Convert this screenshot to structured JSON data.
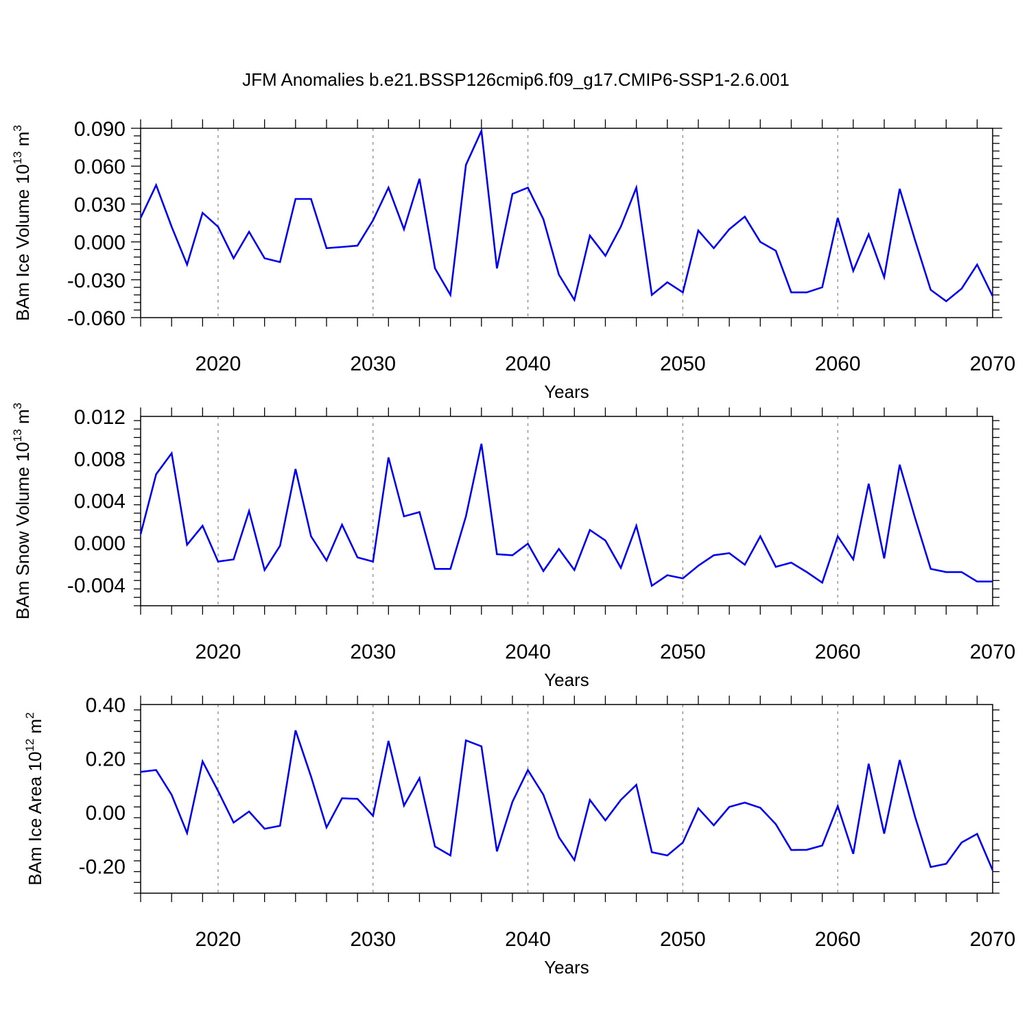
{
  "title": "JFM Anomalies b.e21.BSSP126cmip6.f09_g17.CMIP6-SSP1-2.6.001",
  "chart_data": [
    {
      "type": "line",
      "title": "",
      "xlabel": "Years",
      "ylabel": {
        "prefix": "BAm Ice Volume 10",
        "exp": "13",
        "unit": " m",
        "unit_exp": "3"
      },
      "xlim": [
        2015,
        2070
      ],
      "ylim": [
        -0.06,
        0.09
      ],
      "x_ticks": [
        2020,
        2030,
        2040,
        2050,
        2060,
        2070
      ],
      "y_ticks": [
        -0.06,
        -0.03,
        0.0,
        0.03,
        0.06,
        0.09
      ],
      "y_tick_labels": [
        "-0.060",
        "-0.030",
        "0.000",
        "0.030",
        "0.060",
        "0.090"
      ],
      "grid": "vertical dashed at major x ticks",
      "series_color": "#0000ee",
      "x": [
        2015,
        2016,
        2017,
        2018,
        2019,
        2020,
        2021,
        2022,
        2023,
        2024,
        2025,
        2026,
        2027,
        2028,
        2029,
        2030,
        2031,
        2032,
        2033,
        2034,
        2035,
        2036,
        2037,
        2038,
        2039,
        2040,
        2041,
        2042,
        2043,
        2044,
        2045,
        2046,
        2047,
        2048,
        2049,
        2050,
        2051,
        2052,
        2053,
        2054,
        2055,
        2056,
        2057,
        2058,
        2059,
        2060,
        2061,
        2062,
        2063,
        2064,
        2065,
        2066,
        2067,
        2068,
        2069,
        2070
      ],
      "values": [
        0.019,
        0.045,
        0.012,
        -0.018,
        0.023,
        0.012,
        -0.013,
        0.008,
        -0.013,
        -0.016,
        0.034,
        0.034,
        -0.005,
        -0.004,
        -0.003,
        0.017,
        0.043,
        0.01,
        0.05,
        -0.021,
        -0.042,
        0.061,
        0.088,
        -0.021,
        0.038,
        0.043,
        0.018,
        -0.026,
        -0.046,
        0.005,
        -0.011,
        0.012,
        0.043,
        -0.042,
        -0.032,
        -0.04,
        0.009,
        -0.005,
        0.01,
        0.02,
        0.0,
        -0.007,
        -0.04,
        -0.04,
        -0.036,
        0.019,
        -0.023,
        0.006,
        -0.028,
        0.042,
        0.001,
        -0.038,
        -0.047,
        -0.037,
        -0.018,
        -0.043
      ]
    },
    {
      "type": "line",
      "title": "",
      "xlabel": "Years",
      "ylabel": {
        "prefix": "BAm Snow Volume 10",
        "exp": "13",
        "unit": " m",
        "unit_exp": "3"
      },
      "xlim": [
        2015,
        2070
      ],
      "ylim": [
        -0.006,
        0.012
      ],
      "x_ticks": [
        2020,
        2030,
        2040,
        2050,
        2060,
        2070
      ],
      "y_ticks": [
        -0.004,
        0.0,
        0.004,
        0.008,
        0.012
      ],
      "y_tick_labels": [
        "-0.004",
        "0.000",
        "0.004",
        "0.008",
        "0.012"
      ],
      "grid": "vertical dashed at major x ticks",
      "series_color": "#0000ee",
      "x": [
        2015,
        2016,
        2017,
        2018,
        2019,
        2020,
        2021,
        2022,
        2023,
        2024,
        2025,
        2026,
        2027,
        2028,
        2029,
        2030,
        2031,
        2032,
        2033,
        2034,
        2035,
        2036,
        2037,
        2038,
        2039,
        2040,
        2041,
        2042,
        2043,
        2044,
        2045,
        2046,
        2047,
        2048,
        2049,
        2050,
        2051,
        2052,
        2053,
        2054,
        2055,
        2056,
        2057,
        2058,
        2059,
        2060,
        2061,
        2062,
        2063,
        2064,
        2065,
        2066,
        2067,
        2068,
        2069,
        2070
      ],
      "values": [
        0.0008,
        0.0065,
        0.0085,
        -0.0002,
        0.0016,
        -0.0018,
        -0.0016,
        0.003,
        -0.0026,
        -0.0003,
        0.007,
        0.0006,
        -0.0017,
        0.0017,
        -0.0014,
        -0.0018,
        0.0081,
        0.0025,
        0.0029,
        -0.0025,
        -0.0025,
        0.0025,
        0.0094,
        -0.0011,
        -0.0012,
        -0.0001,
        -0.0027,
        -0.0006,
        -0.0026,
        0.0012,
        0.0002,
        -0.0024,
        0.0016,
        -0.0041,
        -0.0031,
        -0.0034,
        -0.0022,
        -0.0012,
        -0.001,
        -0.0021,
        0.0006,
        -0.0023,
        -0.0019,
        -0.0028,
        -0.0038,
        0.0006,
        -0.0016,
        0.0056,
        -0.0015,
        0.0074,
        0.0023,
        -0.0025,
        -0.0028,
        -0.0028,
        -0.0037,
        -0.0037
      ]
    },
    {
      "type": "line",
      "title": "",
      "xlabel": "Years",
      "ylabel": {
        "prefix": "BAm Ice Area 10",
        "exp": "12",
        "unit": " m",
        "unit_exp": "2"
      },
      "xlim": [
        2015,
        2070
      ],
      "ylim": [
        -0.3,
        0.4
      ],
      "x_ticks": [
        2020,
        2030,
        2040,
        2050,
        2060,
        2070
      ],
      "y_ticks": [
        -0.2,
        0.0,
        0.2,
        0.4
      ],
      "y_tick_labels": [
        "-0.20",
        "0.00",
        "0.20",
        "0.40"
      ],
      "grid": "vertical dashed at major x ticks",
      "series_color": "#0000ee",
      "x": [
        2015,
        2016,
        2017,
        2018,
        2019,
        2020,
        2021,
        2022,
        2023,
        2024,
        2025,
        2026,
        2027,
        2028,
        2029,
        2030,
        2031,
        2032,
        2033,
        2034,
        2035,
        2036,
        2037,
        2038,
        2039,
        2040,
        2041,
        2042,
        2043,
        2044,
        2045,
        2046,
        2047,
        2048,
        2049,
        2050,
        2051,
        2052,
        2053,
        2054,
        2055,
        2056,
        2057,
        2058,
        2059,
        2060,
        2061,
        2062,
        2063,
        2064,
        2065,
        2066,
        2067,
        2068,
        2069,
        2070
      ],
      "values": [
        0.15,
        0.157,
        0.065,
        -0.077,
        0.189,
        0.079,
        -0.038,
        0.003,
        -0.061,
        -0.05,
        0.304,
        0.133,
        -0.056,
        0.052,
        0.05,
        -0.013,
        0.265,
        0.025,
        0.127,
        -0.127,
        -0.16,
        0.267,
        0.245,
        -0.145,
        0.039,
        0.157,
        0.065,
        -0.092,
        -0.177,
        0.046,
        -0.03,
        0.046,
        0.102,
        -0.148,
        -0.16,
        -0.112,
        0.015,
        -0.048,
        0.02,
        0.036,
        0.017,
        -0.044,
        -0.14,
        -0.139,
        -0.123,
        0.023,
        -0.154,
        0.18,
        -0.079,
        0.194,
        -0.018,
        -0.203,
        -0.191,
        -0.112,
        -0.08,
        -0.215
      ]
    }
  ]
}
